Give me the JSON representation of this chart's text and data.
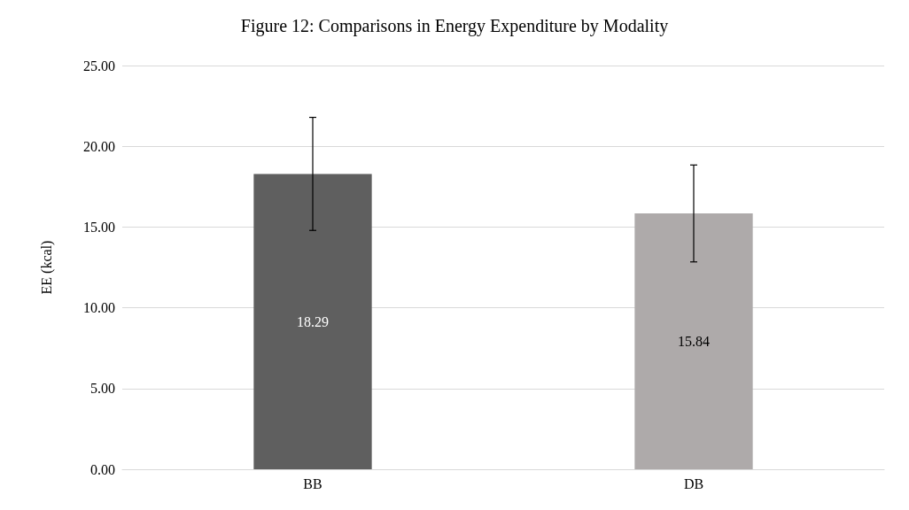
{
  "chart_data": {
    "type": "bar",
    "title": "Figure 12: Comparisons in Energy Expenditure by Modality",
    "ylabel": "EE (kcal)",
    "categories": [
      "BB",
      "DB"
    ],
    "values": [
      18.29,
      15.84
    ],
    "colors": [
      "#5f5f5f",
      "#aeaaaa"
    ],
    "errors": [
      3.5,
      3.0
    ],
    "data_labels": true,
    "ylim": [
      0,
      25
    ],
    "yticks": [
      {
        "value": 0,
        "label": "0.00"
      },
      {
        "value": 5,
        "label": "5.00"
      },
      {
        "value": 10,
        "label": "10.00"
      },
      {
        "value": 15,
        "label": "15.00"
      },
      {
        "value": 20,
        "label": "20.00"
      },
      {
        "value": 25,
        "label": "25.00"
      }
    ],
    "grid": true
  }
}
